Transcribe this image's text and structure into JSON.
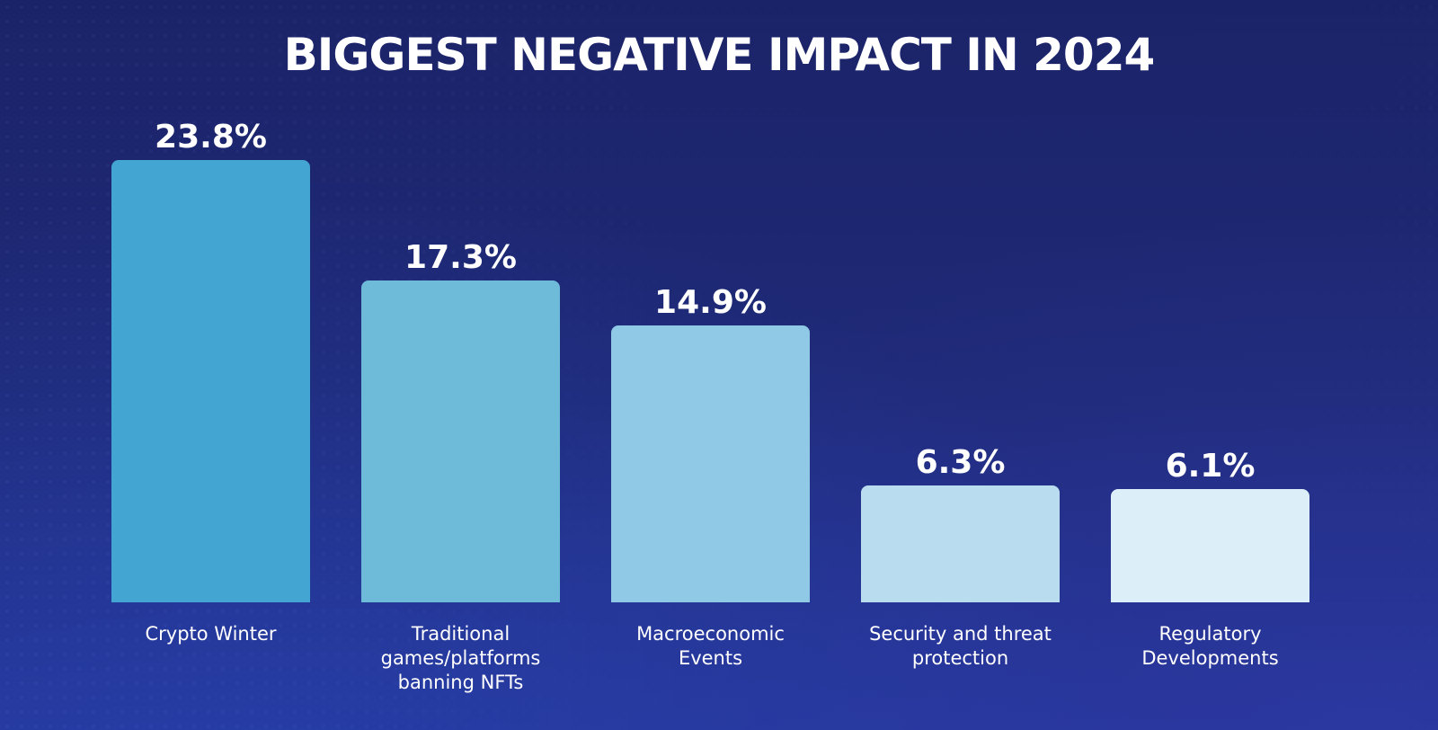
{
  "chart_data": {
    "type": "bar",
    "title": "BIGGEST NEGATIVE IMPACT IN 2024",
    "categories": [
      "Crypto Winter",
      "Traditional\ngames/platforms\nbanning NFTs",
      "Macroeconomic\nEvents",
      "Security and threat\nprotection",
      "Regulatory\nDevelopments"
    ],
    "values": [
      23.8,
      17.3,
      14.9,
      6.3,
      6.1
    ],
    "value_labels": [
      "23.8%",
      "17.3%",
      "14.9%",
      "6.3%",
      "6.1%"
    ],
    "unit": "%",
    "ylim": [
      0,
      23.8
    ],
    "grid": false,
    "legend": "none",
    "bar_colors": [
      "#43a5d1",
      "#6ebad9",
      "#90c9e5",
      "#b9ddee",
      "#dceef7"
    ],
    "text_color": "#ffffff",
    "background_color": "#1f2a78"
  }
}
